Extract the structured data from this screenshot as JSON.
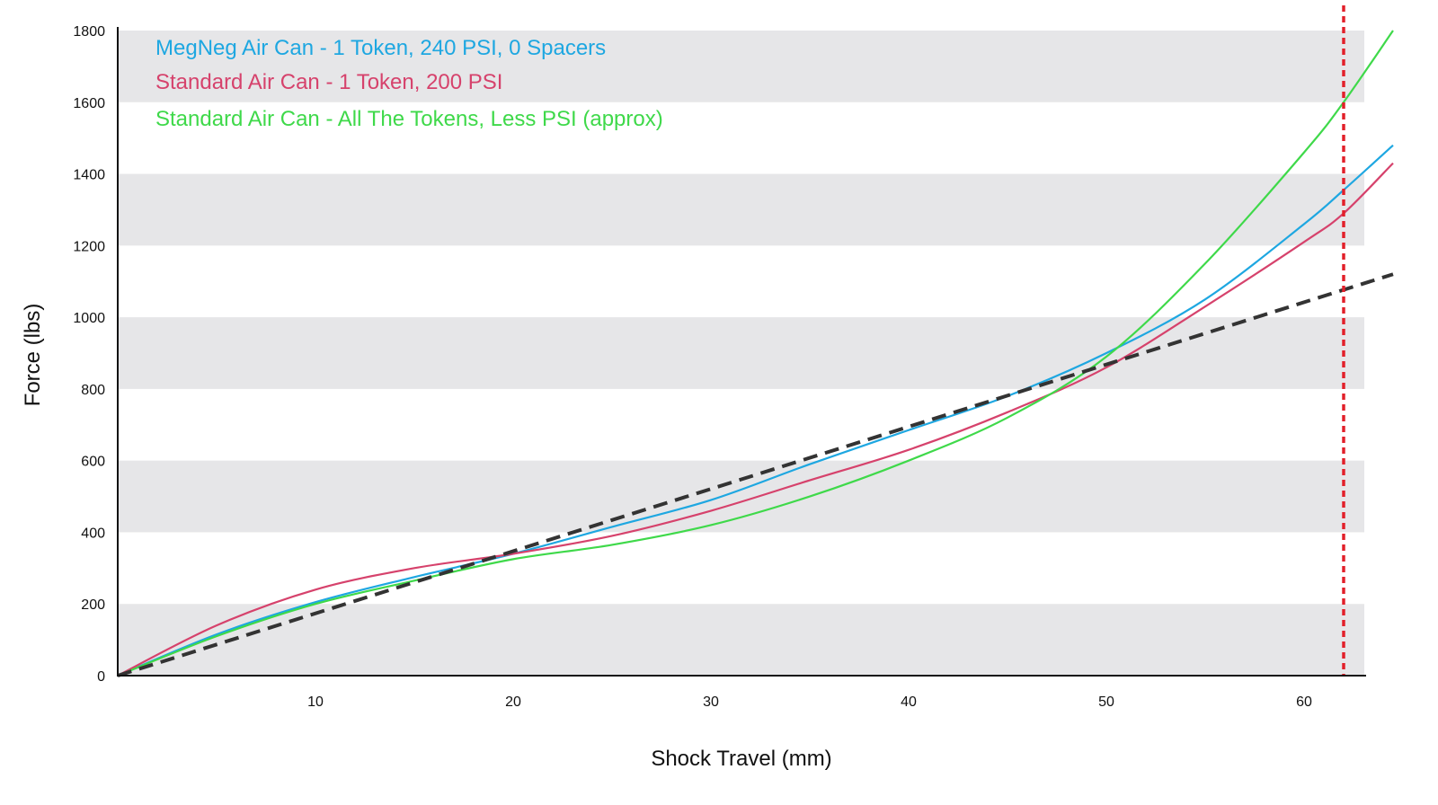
{
  "chart_data": {
    "type": "line",
    "title": "",
    "xlabel": "Shock Travel (mm)",
    "ylabel": "Force (lbs)",
    "xlim": [
      0,
      64.5
    ],
    "ylim": [
      0,
      1800
    ],
    "x_ticks": [
      10,
      20,
      30,
      40,
      50,
      60
    ],
    "y_ticks": [
      0,
      200,
      400,
      600,
      800,
      1000,
      1200,
      1400,
      1600,
      1800
    ],
    "grid": "alternating horizontal bands",
    "band_color": "#e6e6e8",
    "legend_position": "top-left",
    "series": [
      {
        "name": "MegNeg Air Can - 1 Token, 240 PSI, 0 Spacers",
        "color": "#1ea7e1",
        "x": [
          0,
          5,
          10,
          15,
          20,
          25,
          30,
          35,
          40,
          45,
          50,
          55,
          60,
          62,
          64.5
        ],
        "y": [
          0,
          115,
          205,
          275,
          340,
          415,
          490,
          590,
          685,
          780,
          900,
          1050,
          1260,
          1355,
          1480
        ]
      },
      {
        "name": "Standard Air Can - 1 Token, 200 PSI",
        "color": "#d6426c",
        "x": [
          0,
          5,
          10,
          15,
          20,
          25,
          30,
          35,
          40,
          45,
          50,
          55,
          60,
          62,
          64.5
        ],
        "y": [
          0,
          140,
          240,
          300,
          340,
          390,
          460,
          545,
          630,
          735,
          860,
          1030,
          1210,
          1290,
          1430
        ]
      },
      {
        "name": "Standard Air Can - All The Tokens, Less PSI (approx)",
        "color": "#3fd94a",
        "x": [
          0,
          5,
          10,
          15,
          20,
          25,
          30,
          35,
          40,
          45,
          50,
          55,
          60,
          62,
          64.5
        ],
        "y": [
          0,
          110,
          200,
          265,
          325,
          365,
          420,
          500,
          600,
          720,
          890,
          1150,
          1460,
          1600,
          1800
        ]
      },
      {
        "name": "",
        "color": "#333333",
        "style": "dashed",
        "x": [
          0,
          64.5
        ],
        "y": [
          0,
          1120
        ]
      }
    ],
    "vertical_line": {
      "x": 62,
      "color": "#e2202a",
      "style": "dotted"
    }
  }
}
